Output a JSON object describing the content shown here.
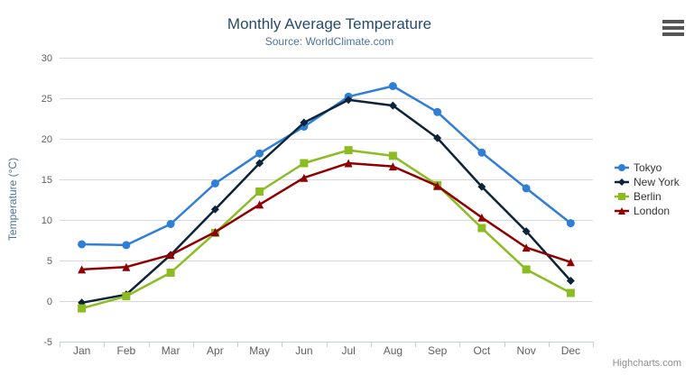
{
  "chart_data": {
    "type": "line",
    "title": "Monthly Average Temperature",
    "subtitle": "Source: WorldClimate.com",
    "credits": "Highcharts.com",
    "categories": [
      "Jan",
      "Feb",
      "Mar",
      "Apr",
      "May",
      "Jun",
      "Jul",
      "Aug",
      "Sep",
      "Oct",
      "Nov",
      "Dec"
    ],
    "series": [
      {
        "name": "Tokyo",
        "color": "#2f7ed8",
        "marker": "circle",
        "values": [
          7.0,
          6.9,
          9.5,
          14.5,
          18.2,
          21.5,
          25.2,
          26.5,
          23.3,
          18.3,
          13.9,
          9.6
        ]
      },
      {
        "name": "New York",
        "color": "#0d233a",
        "marker": "diamond",
        "values": [
          -0.2,
          0.8,
          5.7,
          11.3,
          17.0,
          22.0,
          24.8,
          24.1,
          20.1,
          14.1,
          8.6,
          2.5
        ]
      },
      {
        "name": "Berlin",
        "color": "#8bbc21",
        "marker": "square",
        "values": [
          -0.9,
          0.6,
          3.5,
          8.4,
          13.5,
          17.0,
          18.6,
          17.9,
          14.3,
          9.0,
          3.9,
          1.0
        ]
      },
      {
        "name": "London",
        "color": "#910000",
        "marker": "triangle",
        "values": [
          3.9,
          4.2,
          5.7,
          8.5,
          11.9,
          15.2,
          17.0,
          16.6,
          14.2,
          10.3,
          6.6,
          4.8
        ]
      }
    ],
    "xlabel": "",
    "ylabel": "Temperature (°C)",
    "ylim": [
      -5,
      30
    ],
    "ytick_step": 5,
    "yticks": [
      -5,
      0,
      5,
      10,
      15,
      20,
      25,
      30
    ],
    "grid": true,
    "legend_position": "right",
    "colors": {
      "title": "#274b6d",
      "subtitle": "#4d759e",
      "axis_labels": "#606060",
      "grid_line": "#d8d8d8",
      "x_axis_line": "#c0d0e0",
      "legend_text": "#333333",
      "credits_text": "#909090"
    }
  }
}
